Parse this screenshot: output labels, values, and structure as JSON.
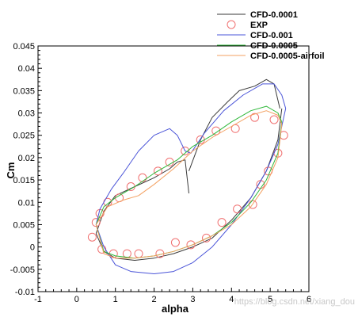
{
  "chart_data": {
    "type": "line",
    "xlabel": "alpha",
    "ylabel": "Cm",
    "xlim": [
      -1,
      6
    ],
    "ylim": [
      -0.01,
      0.045
    ],
    "x_ticks": [
      "-1",
      "0",
      "1",
      "2",
      "3",
      "4",
      "5",
      "6"
    ],
    "y_ticks": [
      "-0.01",
      "-0.005",
      "0",
      "0.005",
      "0.01",
      "0.015",
      "0.02",
      "0.025",
      "0.03",
      "0.035",
      "0.04",
      "0.045"
    ],
    "legend_position": "top-right",
    "watermark": "https://blog.csdn.net/xiang_dou",
    "series": [
      {
        "name": "CFD-0.0001",
        "color": "#3a3a3a",
        "style": "line",
        "upper": [
          [
            0.5,
            0.003
          ],
          [
            0.7,
            0.008
          ],
          [
            1.0,
            0.0115
          ],
          [
            1.5,
            0.0135
          ],
          [
            2.0,
            0.0155
          ],
          [
            2.4,
            0.0175
          ],
          [
            2.6,
            0.019
          ],
          [
            2.8,
            0.0195
          ],
          [
            2.9,
            0.012
          ]
        ],
        "upper2": [
          [
            2.9,
            0.017
          ],
          [
            3.2,
            0.024
          ],
          [
            3.5,
            0.029
          ],
          [
            3.9,
            0.0325
          ],
          [
            4.2,
            0.035
          ],
          [
            4.6,
            0.036
          ],
          [
            4.9,
            0.0375
          ],
          [
            5.1,
            0.0365
          ],
          [
            5.25,
            0.031
          ]
        ],
        "lower": [
          [
            0.5,
            0.003
          ],
          [
            0.7,
            -0.001
          ],
          [
            1.0,
            -0.0025
          ],
          [
            1.5,
            -0.003
          ],
          [
            2.0,
            -0.0025
          ],
          [
            2.5,
            -0.0015
          ],
          [
            3.0,
            0
          ],
          [
            3.5,
            0.002
          ],
          [
            4.0,
            0.006
          ],
          [
            4.5,
            0.011
          ],
          [
            4.9,
            0.017
          ],
          [
            5.2,
            0.024
          ],
          [
            5.3,
            0.031
          ]
        ]
      },
      {
        "name": "EXP",
        "color": "#f07070",
        "style": "markers",
        "points": [
          [
            0.4,
            0.0022
          ],
          [
            0.5,
            0.0055
          ],
          [
            0.6,
            0.0075
          ],
          [
            0.8,
            0.01
          ],
          [
            1.1,
            0.011
          ],
          [
            1.4,
            0.0135
          ],
          [
            1.7,
            0.0155
          ],
          [
            2.1,
            0.017
          ],
          [
            2.4,
            0.019
          ],
          [
            2.8,
            0.0215
          ],
          [
            3.2,
            0.024
          ],
          [
            3.6,
            0.026
          ],
          [
            4.1,
            0.0265
          ],
          [
            4.6,
            0.029
          ],
          [
            5.1,
            0.0285
          ],
          [
            5.35,
            0.025
          ],
          [
            5.2,
            0.021
          ],
          [
            4.95,
            0.017
          ],
          [
            4.75,
            0.014
          ],
          [
            4.55,
            0.0095
          ],
          [
            4.15,
            0.0085
          ],
          [
            3.75,
            0.0055
          ],
          [
            3.35,
            0.002
          ],
          [
            2.95,
            0.0005
          ],
          [
            2.55,
            0.001
          ],
          [
            2.15,
            -0.0015
          ],
          [
            1.6,
            -0.0015
          ],
          [
            1.3,
            -0.0015
          ],
          [
            0.95,
            -0.0015
          ],
          [
            0.65,
            -0.0005
          ]
        ]
      },
      {
        "name": "CFD-0.001",
        "color": "#4a54d8",
        "style": "line",
        "upper": [
          [
            0.5,
            0.005
          ],
          [
            0.6,
            0.0085
          ],
          [
            0.9,
            0.013
          ],
          [
            1.2,
            0.0165
          ],
          [
            1.6,
            0.0215
          ],
          [
            2.0,
            0.025
          ],
          [
            2.4,
            0.0265
          ],
          [
            2.6,
            0.025
          ],
          [
            2.8,
            0.0215
          ],
          [
            2.95,
            0.021
          ],
          [
            3.3,
            0.0255
          ],
          [
            3.8,
            0.0305
          ],
          [
            4.3,
            0.034
          ],
          [
            4.8,
            0.0365
          ],
          [
            5.1,
            0.0365
          ],
          [
            5.3,
            0.034
          ],
          [
            5.4,
            0.031
          ]
        ],
        "lower": [
          [
            0.5,
            0.005
          ],
          [
            0.7,
            0
          ],
          [
            1.0,
            -0.004
          ],
          [
            1.4,
            -0.0055
          ],
          [
            2.0,
            -0.006
          ],
          [
            2.5,
            -0.0055
          ],
          [
            3.0,
            -0.0035
          ],
          [
            3.5,
            0
          ],
          [
            4.0,
            0.005
          ],
          [
            4.5,
            0.011
          ],
          [
            4.9,
            0.017
          ],
          [
            5.2,
            0.023
          ],
          [
            5.35,
            0.029
          ],
          [
            5.4,
            0.031
          ]
        ]
      },
      {
        "name": "CFD-0.0005",
        "color": "#2fb83a",
        "style": "line",
        "upper": [
          [
            0.5,
            0.005
          ],
          [
            0.7,
            0.009
          ],
          [
            1.0,
            0.011
          ],
          [
            1.5,
            0.0135
          ],
          [
            2.0,
            0.0165
          ],
          [
            2.6,
            0.0195
          ],
          [
            3.0,
            0.0225
          ],
          [
            3.5,
            0.025
          ],
          [
            4.0,
            0.028
          ],
          [
            4.5,
            0.0305
          ],
          [
            4.9,
            0.0315
          ],
          [
            5.2,
            0.03
          ],
          [
            5.3,
            0.028
          ]
        ],
        "lower": [
          [
            0.5,
            0.005
          ],
          [
            0.7,
            -0.001
          ],
          [
            1.0,
            -0.002
          ],
          [
            1.5,
            -0.0025
          ],
          [
            2.0,
            -0.002
          ],
          [
            2.5,
            -0.001
          ],
          [
            3.0,
            0.0005
          ],
          [
            3.5,
            0.0025
          ],
          [
            4.0,
            0.0055
          ],
          [
            4.5,
            0.01
          ],
          [
            4.9,
            0.015
          ],
          [
            5.2,
            0.021
          ],
          [
            5.3,
            0.028
          ]
        ]
      },
      {
        "name": "CFD-0.0005-airfoil",
        "color": "#f3a060",
        "style": "line",
        "upper": [
          [
            0.5,
            0.005
          ],
          [
            0.8,
            0.009
          ],
          [
            1.2,
            0.0105
          ],
          [
            1.6,
            0.0115
          ],
          [
            2.0,
            0.014
          ],
          [
            2.5,
            0.0175
          ],
          [
            3.0,
            0.0215
          ],
          [
            3.5,
            0.0245
          ],
          [
            4.0,
            0.027
          ],
          [
            4.5,
            0.0295
          ],
          [
            4.9,
            0.0305
          ],
          [
            5.2,
            0.0295
          ],
          [
            5.3,
            0.0275
          ]
        ],
        "lower": [
          [
            0.5,
            0.005
          ],
          [
            0.7,
            -0.0015
          ],
          [
            1.0,
            -0.0025
          ],
          [
            1.5,
            -0.0025
          ],
          [
            2.0,
            -0.002
          ],
          [
            2.5,
            -0.001
          ],
          [
            3.0,
            0.0005
          ],
          [
            3.5,
            0.0025
          ],
          [
            4.0,
            0.005
          ],
          [
            4.5,
            0.009
          ],
          [
            4.9,
            0.014
          ],
          [
            5.2,
            0.02
          ],
          [
            5.3,
            0.0275
          ]
        ]
      }
    ]
  }
}
